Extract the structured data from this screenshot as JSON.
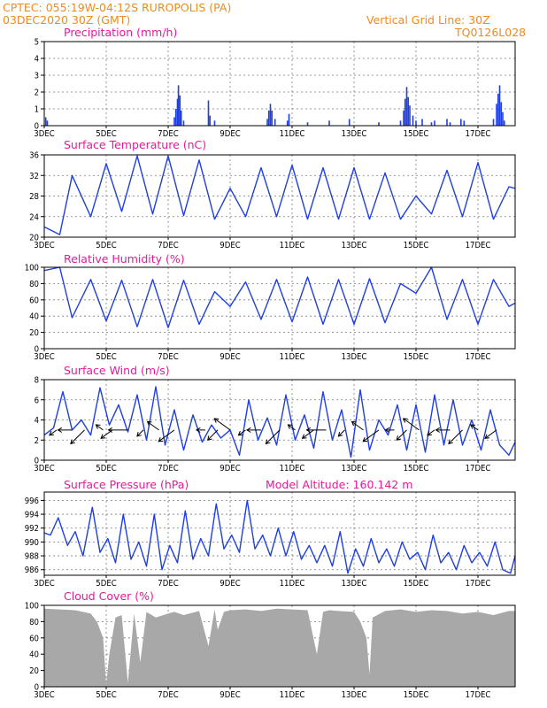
{
  "header": {
    "line1": "CPTEC:  055:19W-04:12S  RUROPOLIS (PA)",
    "line2": "03DEC2020 30Z (GMT)",
    "grid_note": "Vertical Grid Line: 30Z",
    "model_id": "TQ0126L028"
  },
  "colors": {
    "header": "#ef8a1e",
    "panel_title": "#e8189c",
    "series": "#1f3fe0",
    "cloud": "#a8a8a8"
  },
  "chart_data": [
    {
      "type": "bar",
      "title": "Precipitation (mm/h)",
      "ylim": [
        0,
        5
      ],
      "yticks": [
        0,
        1,
        2,
        3,
        4,
        5
      ],
      "xtick_labels": [
        "3DEC",
        "5DEC",
        "7DEC",
        "9DEC",
        "11DEC",
        "13DEC",
        "15DEC",
        "17DEC"
      ],
      "x_days": [
        3,
        5,
        7,
        9,
        11,
        13,
        15,
        17
      ],
      "xlim_days": [
        3,
        18.2
      ],
      "bars": [
        [
          3.05,
          0.5
        ],
        [
          3.1,
          0.3
        ],
        [
          7.2,
          0.5
        ],
        [
          7.25,
          1.0
        ],
        [
          7.3,
          1.6
        ],
        [
          7.33,
          2.4
        ],
        [
          7.38,
          1.8
        ],
        [
          7.42,
          0.9
        ],
        [
          7.5,
          0.3
        ],
        [
          8.3,
          1.5
        ],
        [
          8.35,
          0.6
        ],
        [
          8.5,
          0.3
        ],
        [
          10.2,
          0.4
        ],
        [
          10.25,
          0.9
        ],
        [
          10.3,
          1.3
        ],
        [
          10.35,
          0.9
        ],
        [
          10.45,
          0.4
        ],
        [
          10.85,
          0.3
        ],
        [
          10.9,
          0.7
        ],
        [
          11.5,
          0.2
        ],
        [
          12.2,
          0.3
        ],
        [
          12.85,
          0.4
        ],
        [
          13.8,
          0.2
        ],
        [
          14.5,
          0.3
        ],
        [
          14.6,
          0.9
        ],
        [
          14.65,
          1.6
        ],
        [
          14.7,
          2.3
        ],
        [
          14.75,
          1.7
        ],
        [
          14.8,
          1.2
        ],
        [
          14.9,
          0.6
        ],
        [
          15.0,
          0.3
        ],
        [
          15.2,
          0.4
        ],
        [
          15.5,
          0.2
        ],
        [
          15.6,
          0.3
        ],
        [
          16.0,
          0.4
        ],
        [
          16.1,
          0.2
        ],
        [
          16.45,
          0.4
        ],
        [
          16.55,
          0.3
        ],
        [
          17.5,
          0.4
        ],
        [
          17.6,
          1.3
        ],
        [
          17.65,
          1.9
        ],
        [
          17.7,
          2.4
        ],
        [
          17.75,
          1.4
        ],
        [
          17.8,
          0.8
        ],
        [
          17.85,
          0.3
        ]
      ]
    },
    {
      "type": "line",
      "title": "Surface Temperature (nC)",
      "ylim": [
        20,
        36
      ],
      "yticks": [
        20,
        24,
        28,
        32,
        36
      ],
      "xtick_labels": [
        "3DEC",
        "5DEC",
        "7DEC",
        "9DEC",
        "11DEC",
        "13DEC",
        "15DEC",
        "17DEC"
      ],
      "x_days": [
        3,
        5,
        7,
        9,
        11,
        13,
        15,
        17
      ],
      "xlim_days": [
        3,
        18.2
      ],
      "x": [
        3.0,
        3.5,
        3.9,
        4.5,
        5.0,
        5.5,
        6.0,
        6.5,
        7.0,
        7.5,
        8.0,
        8.5,
        9.0,
        9.5,
        10.0,
        10.5,
        11.0,
        11.5,
        12.0,
        12.5,
        13.0,
        13.5,
        14.0,
        14.5,
        15.0,
        15.5,
        16.0,
        16.5,
        17.0,
        17.5,
        18.0,
        18.2
      ],
      "values": [
        22,
        20.5,
        32,
        24,
        34.3,
        25,
        35.8,
        24.5,
        35.8,
        24.2,
        35,
        23.5,
        29.5,
        24,
        33.5,
        24,
        34,
        23.5,
        33.5,
        23.5,
        33.5,
        23.5,
        32.5,
        23.5,
        28,
        24.5,
        33,
        24,
        34.5,
        23.5,
        29.8,
        29.5
      ]
    },
    {
      "type": "line",
      "title": "Relative Humidity (%)",
      "ylim": [
        0,
        100
      ],
      "yticks": [
        0,
        20,
        40,
        60,
        80,
        100
      ],
      "xtick_labels": [
        "3DEC",
        "5DEC",
        "7DEC",
        "9DEC",
        "11DEC",
        "13DEC",
        "15DEC",
        "17DEC"
      ],
      "x_days": [
        3,
        5,
        7,
        9,
        11,
        13,
        15,
        17
      ],
      "xlim_days": [
        3,
        18.2
      ],
      "x": [
        3.0,
        3.5,
        3.9,
        4.5,
        5.0,
        5.5,
        6.0,
        6.5,
        7.0,
        7.5,
        8.0,
        8.5,
        9.0,
        9.5,
        10.0,
        10.5,
        11.0,
        11.5,
        12.0,
        12.5,
        13.0,
        13.5,
        14.0,
        14.5,
        15.0,
        15.5,
        16.0,
        16.5,
        17.0,
        17.5,
        18.0,
        18.2
      ],
      "values": [
        96,
        100,
        38,
        85,
        34,
        84,
        27,
        85,
        26,
        84,
        30,
        70,
        52,
        82,
        36,
        85,
        33,
        88,
        30,
        85,
        30,
        86,
        32,
        80,
        68,
        100,
        36,
        85,
        30,
        85,
        52,
        56
      ]
    },
    {
      "type": "line",
      "title": "Surface Wind (m/s)",
      "ylim": [
        0,
        8
      ],
      "yticks": [
        0,
        2,
        4,
        6,
        8
      ],
      "xtick_labels": [
        "3DEC",
        "5DEC",
        "7DEC",
        "9DEC",
        "11DEC",
        "13DEC",
        "15DEC",
        "17DEC"
      ],
      "x_days": [
        3,
        5,
        7,
        9,
        11,
        13,
        15,
        17
      ],
      "xlim_days": [
        3,
        18.2
      ],
      "x": [
        3.0,
        3.3,
        3.6,
        3.9,
        4.2,
        4.5,
        4.8,
        5.1,
        5.4,
        5.7,
        6.0,
        6.3,
        6.6,
        6.9,
        7.2,
        7.5,
        7.8,
        8.1,
        8.4,
        8.7,
        9.0,
        9.3,
        9.6,
        9.9,
        10.2,
        10.5,
        10.8,
        11.1,
        11.4,
        11.7,
        12.0,
        12.3,
        12.6,
        12.9,
        13.2,
        13.5,
        13.8,
        14.1,
        14.4,
        14.7,
        15.0,
        15.3,
        15.6,
        15.9,
        16.2,
        16.5,
        16.8,
        17.1,
        17.4,
        17.7,
        18.0,
        18.2
      ],
      "values": [
        2.5,
        3.2,
        6.8,
        3.0,
        4.0,
        2.5,
        7.2,
        3.5,
        5.5,
        2.8,
        6.5,
        2.0,
        7.3,
        1.5,
        5.0,
        1.0,
        4.5,
        1.8,
        3.5,
        2.2,
        3.0,
        0.5,
        6.0,
        2.0,
        4.2,
        1.5,
        6.5,
        2.0,
        4.5,
        1.2,
        6.8,
        2.0,
        5.0,
        0.3,
        7.0,
        1.0,
        4.0,
        2.5,
        5.5,
        1.0,
        5.5,
        0.8,
        6.5,
        1.5,
        6.0,
        1.5,
        4.0,
        1.0,
        5.0,
        1.5,
        0.5,
        1.8
      ],
      "vector_days": [
        3.4,
        3.9,
        4.3,
        4.9,
        5.2,
        5.7,
        6.2,
        6.7,
        7.2,
        8.2,
        8.6,
        9.0,
        9.5,
        10.0,
        10.6,
        11.1,
        11.7,
        12.1,
        12.7,
        13.3,
        13.8,
        14.3,
        14.7,
        15.1,
        15.6,
        16.1,
        16.5,
        17.0,
        17.6
      ]
    },
    {
      "type": "line",
      "title": "Surface Pressure (hPa)",
      "annotation": "Model Altitude: 160.142 m",
      "ylim": [
        985.2,
        997.2
      ],
      "yticks": [
        986,
        988,
        990,
        992,
        994,
        996
      ],
      "xtick_labels": [
        "3DEC",
        "5DEC",
        "7DEC",
        "9DEC",
        "11DEC",
        "13DEC",
        "15DEC",
        "17DEC"
      ],
      "x_days": [
        3,
        5,
        7,
        9,
        11,
        13,
        15,
        17
      ],
      "xlim_days": [
        3,
        18.2
      ],
      "x": [
        3.0,
        3.2,
        3.45,
        3.75,
        4.0,
        4.25,
        4.55,
        4.8,
        5.05,
        5.3,
        5.55,
        5.8,
        6.05,
        6.3,
        6.55,
        6.8,
        7.05,
        7.3,
        7.55,
        7.8,
        8.05,
        8.3,
        8.55,
        8.8,
        9.05,
        9.3,
        9.55,
        9.8,
        10.05,
        10.3,
        10.55,
        10.8,
        11.05,
        11.3,
        11.55,
        11.8,
        12.05,
        12.3,
        12.55,
        12.8,
        13.05,
        13.3,
        13.55,
        13.8,
        14.05,
        14.3,
        14.55,
        14.8,
        15.05,
        15.3,
        15.55,
        15.8,
        16.05,
        16.3,
        16.55,
        16.8,
        17.05,
        17.3,
        17.55,
        17.8,
        18.05,
        18.2
      ],
      "values": [
        991.3,
        991.0,
        993.5,
        989.5,
        991.5,
        988.0,
        995.0,
        988.5,
        990.5,
        987.0,
        994.0,
        987.5,
        990.0,
        986.5,
        994.0,
        986.0,
        989.5,
        987.0,
        994.5,
        987.5,
        990.5,
        988.0,
        995.5,
        989.0,
        991.0,
        988.5,
        996.0,
        989.0,
        991.0,
        988.0,
        992.0,
        988.0,
        991.5,
        987.5,
        989.5,
        987.0,
        989.5,
        986.5,
        991.5,
        985.5,
        989.0,
        986.5,
        990.5,
        987.0,
        989.0,
        986.5,
        990.0,
        987.5,
        988.5,
        986.0,
        991.0,
        987.0,
        988.5,
        986.0,
        989.5,
        987.0,
        988.5,
        986.5,
        990.0,
        986.0,
        985.5,
        988.0
      ]
    },
    {
      "type": "area",
      "title": "Cloud Cover (%)",
      "ylim": [
        0,
        100
      ],
      "yticks": [
        0,
        20,
        40,
        60,
        80,
        100
      ],
      "xtick_labels": [
        "3DEC",
        "5DEC",
        "7DEC",
        "9DEC",
        "11DEC",
        "13DEC",
        "15DEC",
        "17DEC"
      ],
      "x_days": [
        3,
        5,
        7,
        9,
        11,
        13,
        15,
        17
      ],
      "xlim_days": [
        3,
        18.2
      ],
      "x": [
        3.0,
        3.5,
        4.0,
        4.5,
        4.7,
        4.9,
        5.0,
        5.1,
        5.3,
        5.5,
        5.7,
        5.9,
        6.1,
        6.3,
        6.6,
        7.0,
        7.2,
        7.5,
        8.0,
        8.3,
        8.5,
        8.6,
        8.8,
        9.0,
        9.5,
        10.0,
        10.5,
        11.0,
        11.5,
        11.8,
        12.0,
        12.2,
        12.5,
        13.0,
        13.2,
        13.4,
        13.5,
        13.6,
        14.0,
        14.5,
        15.0,
        15.5,
        16.0,
        16.5,
        17.0,
        17.5,
        18.0,
        18.2
      ],
      "values": [
        96,
        95,
        94,
        90,
        80,
        60,
        3,
        40,
        85,
        88,
        5,
        90,
        30,
        92,
        85,
        90,
        92,
        88,
        93,
        50,
        95,
        70,
        92,
        94,
        95,
        93,
        96,
        95,
        94,
        40,
        92,
        94,
        93,
        92,
        80,
        60,
        15,
        85,
        93,
        95,
        92,
        94,
        93,
        90,
        92,
        88,
        93,
        93
      ]
    }
  ]
}
